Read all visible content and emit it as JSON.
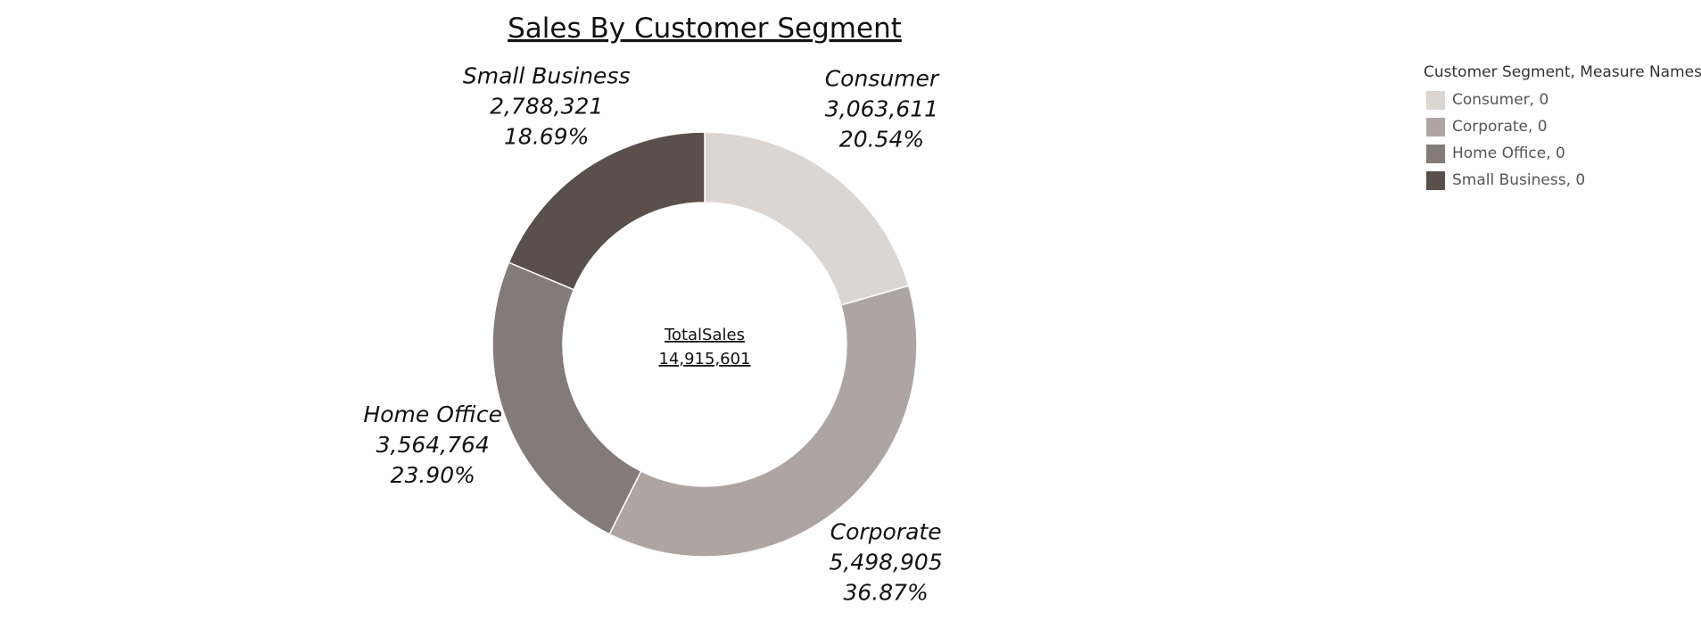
{
  "chart_data": {
    "type": "pie",
    "title": "Sales By Customer Segment",
    "center_label": "TotalSales",
    "total": 14915601,
    "total_display": "14,915,601",
    "categories": [
      "Consumer",
      "Corporate",
      "Home Office",
      "Small Business"
    ],
    "values": [
      3063611,
      5498905,
      3564764,
      2788321
    ],
    "value_labels": [
      "3,063,611",
      "5,498,905",
      "3,564,764",
      "2,788,321"
    ],
    "percent_labels": [
      "20.54%",
      "36.87%",
      "23.90%",
      "18.69%"
    ],
    "colors": [
      "#dcd6d3",
      "#aea5a2",
      "#847b78",
      "#5a4f4b"
    ],
    "legend": {
      "title": "Customer Segment, Measure Names",
      "position": "top-right",
      "entries": [
        "Consumer, 0",
        "Corporate, 0",
        "Home Office, 0",
        "Small Business, 0"
      ]
    }
  }
}
